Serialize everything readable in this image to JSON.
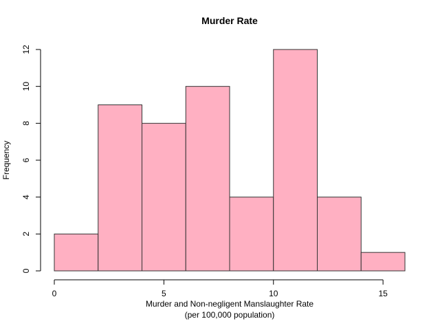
{
  "chart_data": {
    "type": "bar",
    "title": "Murder Rate",
    "xlabel": "Murder and Non-negligent Manslaughter Rate",
    "xlabel_line2": "(per 100,000 population)",
    "ylabel": "Frequency",
    "bins": [
      {
        "start": 0,
        "end": 2,
        "count": 2
      },
      {
        "start": 2,
        "end": 4,
        "count": 9
      },
      {
        "start": 4,
        "end": 6,
        "count": 8
      },
      {
        "start": 6,
        "end": 8,
        "count": 10
      },
      {
        "start": 8,
        "end": 10,
        "count": 4
      },
      {
        "start": 10,
        "end": 12,
        "count": 12
      },
      {
        "start": 12,
        "end": 14,
        "count": 4
      },
      {
        "start": 14,
        "end": 16,
        "count": 1
      }
    ],
    "xlim": [
      0,
      16
    ],
    "ylim": [
      0,
      12
    ],
    "xticks": [
      0,
      5,
      10,
      15
    ],
    "yticks": [
      0,
      2,
      4,
      6,
      8,
      10,
      12
    ],
    "bar_color": "#ffb0c2",
    "grid": false
  }
}
